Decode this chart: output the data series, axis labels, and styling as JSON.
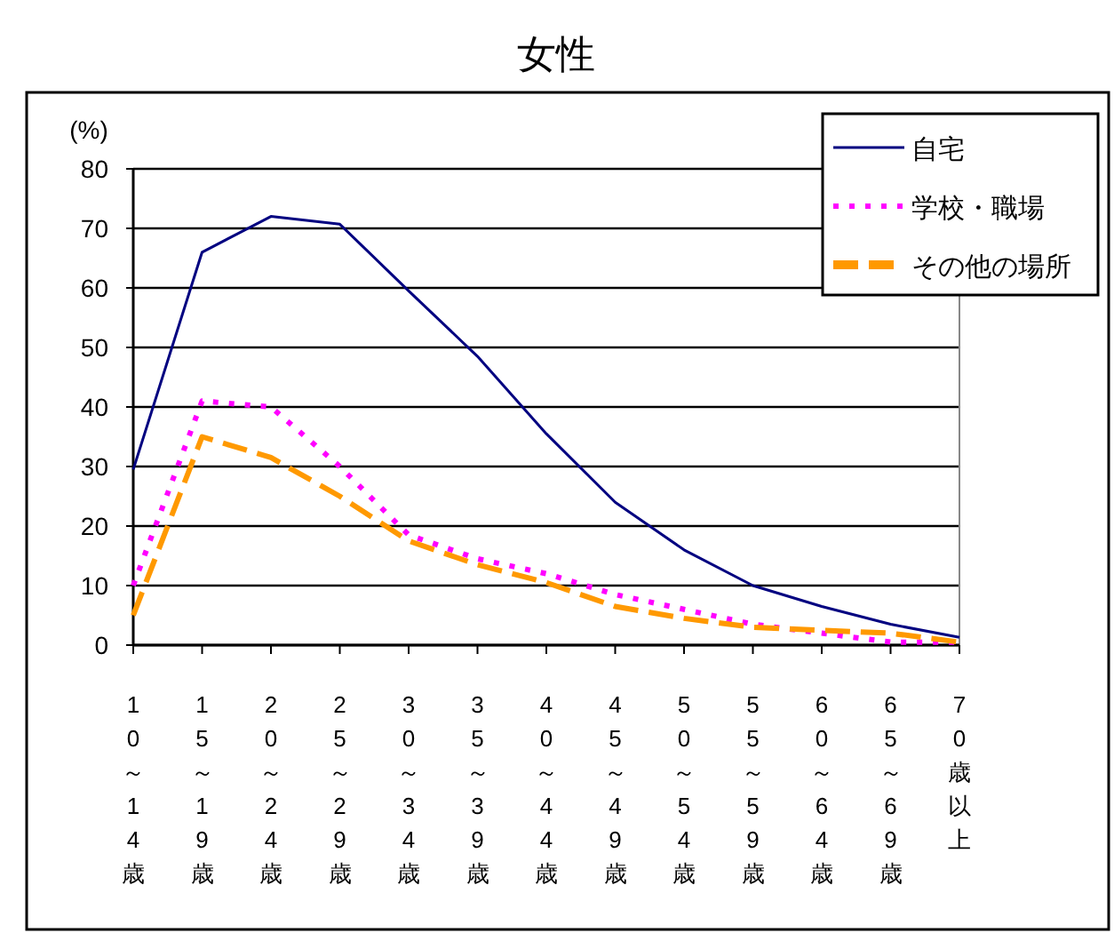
{
  "chart_data": {
    "type": "line",
    "title": "女性",
    "ylabel": "(%)",
    "categories": [
      "10～14歳",
      "15～19歳",
      "20～24歳",
      "25～29歳",
      "30～34歳",
      "35～39歳",
      "40～44歳",
      "45～49歳",
      "50～54歳",
      "55～59歳",
      "60～64歳",
      "65～69歳",
      "70歳以上"
    ],
    "series": [
      {
        "name": "自宅",
        "color": "#000080",
        "line_style": "solid",
        "values": [
          29.5,
          66,
          72,
          70.7,
          59.5,
          48.5,
          35.5,
          24,
          16,
          10,
          6.5,
          3.5,
          1.3
        ]
      },
      {
        "name": "学校・職場",
        "color": "#ff00ff",
        "line_style": "dotted",
        "values": [
          10,
          41,
          40,
          30,
          18.5,
          14.5,
          12,
          8.5,
          6,
          3.5,
          2,
          0.5,
          0.5
        ]
      },
      {
        "name": "その他の場所",
        "color": "#ff9900",
        "line_style": "dashed",
        "values": [
          5,
          35,
          31.5,
          25,
          17.5,
          13.5,
          10.5,
          6.5,
          4.5,
          3,
          2.5,
          2,
          0.5
        ]
      }
    ],
    "ylim": [
      0,
      80
    ],
    "yticks": [
      0,
      10,
      20,
      30,
      40,
      50,
      60,
      70,
      80
    ],
    "grid": "y",
    "legend": "top right"
  }
}
